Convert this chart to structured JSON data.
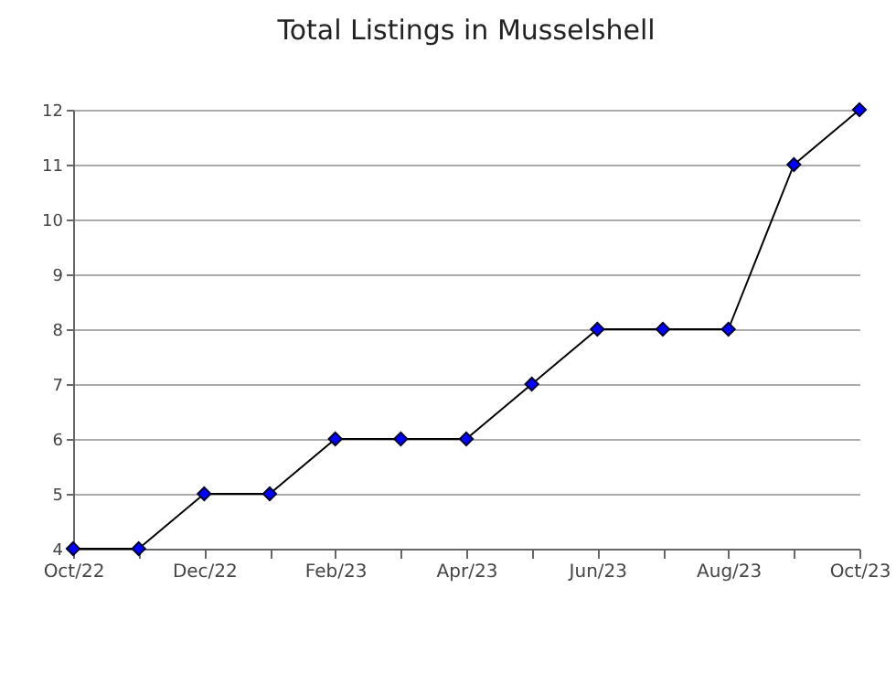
{
  "chart_data": {
    "type": "line",
    "title": "Total Listings in Musselshell",
    "categories": [
      "Oct/22",
      null,
      "Dec/22",
      null,
      "Feb/23",
      null,
      "Apr/23",
      null,
      "Jun/23",
      null,
      "Aug/23",
      null,
      "Oct/23"
    ],
    "series": [
      {
        "color": "#0000ff",
        "values": [
          4,
          4,
          5,
          5,
          6,
          6,
          6,
          7,
          8,
          8,
          8,
          11,
          12
        ]
      }
    ],
    "ylim": [
      4,
      12
    ],
    "yticks": [
      4,
      5,
      6,
      7,
      8,
      9,
      10,
      11,
      12
    ],
    "grid": "y",
    "marker": "diamond",
    "line_style": "solid"
  }
}
